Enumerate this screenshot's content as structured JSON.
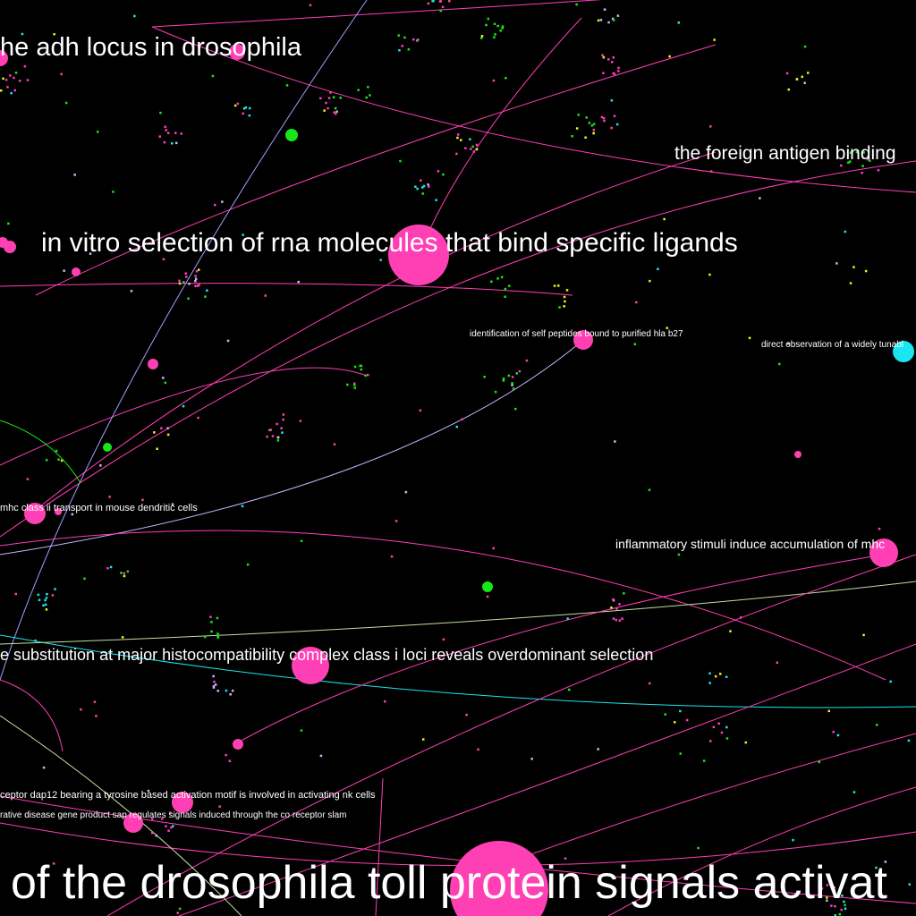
{
  "colors": {
    "background": "#000000",
    "pink": "#ff3fb4",
    "green": "#19e619",
    "cyan": "#19e6f0",
    "yellow": "#f0f019",
    "lavender": "#c8b4ff",
    "label": "#ffffff"
  },
  "labels": [
    {
      "text": "he adh locus in drosophila"
    },
    {
      "text": "the foreign antigen binding"
    },
    {
      "text": "in vitro selection of rna molecules that bind specific ligands"
    },
    {
      "text": "identification of self peptides bound to purified hla b27"
    },
    {
      "text": "direct observation of a widely tunabl"
    },
    {
      "text": "mhc class ii transport in mouse dendritic cells"
    },
    {
      "text": "inflammatory stimuli induce accumulation of mhc"
    },
    {
      "text": "e substitution at major histocompatibility complex class i loci reveals overdominant selection"
    },
    {
      "text": "ceptor dap12 bearing a tyrosine based activation motif is involved in activating nk cells"
    },
    {
      "text": "rative disease gene product sap regulates signals induced through the co receptor slam"
    },
    {
      "text": "of the drosophila toll protein signals activat"
    }
  ]
}
